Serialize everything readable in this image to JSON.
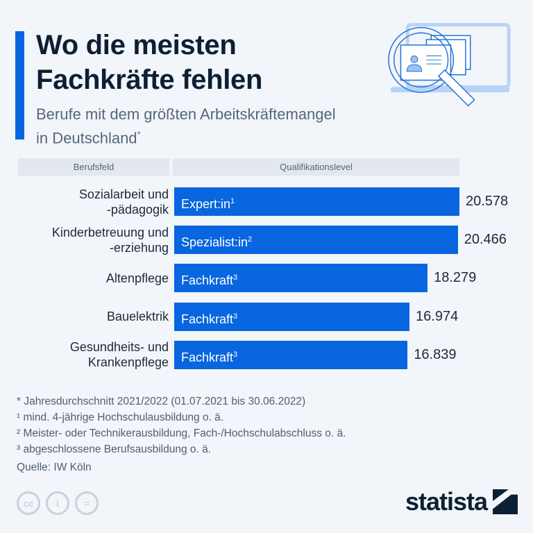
{
  "header": {
    "title_line1": "Wo die meisten",
    "title_line2": "Fachkräfte fehlen",
    "subtitle_line1": "Berufe mit dem größten Arbeitskräftemangel",
    "subtitle_line2": "in Deutschland",
    "subtitle_mark": "*"
  },
  "columns": {
    "category": "Berufsfeld",
    "level": "Qualifikationslevel"
  },
  "chart_data": {
    "type": "bar",
    "orientation": "horizontal",
    "categories": [
      [
        "Sozialarbeit und",
        "-pädagogik"
      ],
      [
        "Kinderbetreuung und",
        "-erziehung"
      ],
      [
        "Altenpflege"
      ],
      [
        "Bauelektrik"
      ],
      [
        "Gesundheits- und",
        "Krankenpflege"
      ]
    ],
    "bar_labels": [
      {
        "text": "Expert:in",
        "mark": "1"
      },
      {
        "text": "Spezialist:in",
        "mark": "2"
      },
      {
        "text": "Fachkraft",
        "mark": "3"
      },
      {
        "text": "Fachkraft",
        "mark": "3"
      },
      {
        "text": "Fachkraft",
        "mark": "3"
      }
    ],
    "values": [
      20578,
      20466,
      18279,
      16974,
      16839
    ],
    "value_labels": [
      "20.578",
      "20.466",
      "18.279",
      "16.974",
      "16.839"
    ],
    "bar_color": "#0766e0",
    "grid": false
  },
  "footnotes": [
    "* Jahresdurchschnitt 2021/2022 (01.07.2021 bis 30.06.2022)",
    "¹ mind. 4-jährige Hochschulausbildung o. ä.",
    "² Meister- oder Technikerausbildung, Fach-/Hochschulabschluss o. ä.",
    "³ abgeschlossene Berufsausbildung o. ä."
  ],
  "source": "Quelle: IW Köln",
  "license_icons": [
    "cc-icon",
    "attribution-icon",
    "no-derivatives-icon"
  ],
  "logo": "statista"
}
